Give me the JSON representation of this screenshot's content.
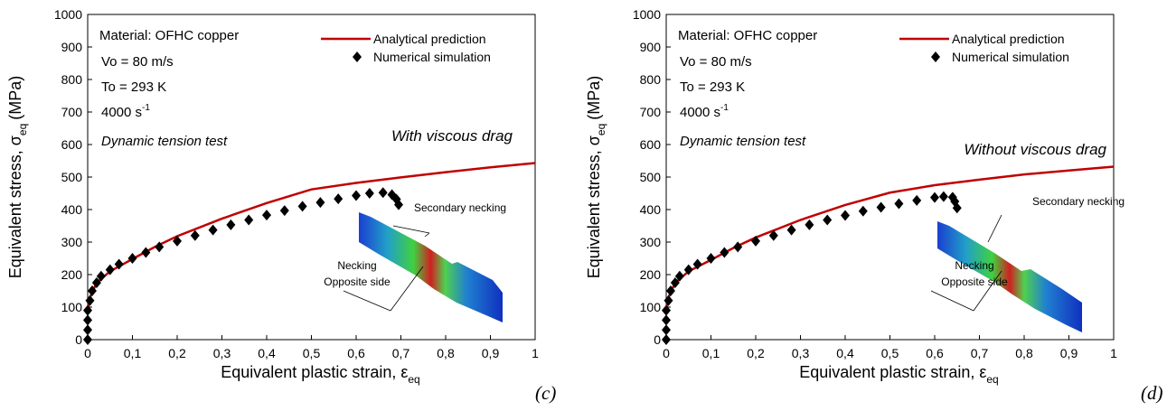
{
  "chart_data": [
    {
      "type": "line",
      "panel_label": "(c)",
      "xlabel": {
        "text": "Equivalent plastic strain, ε",
        "sub": "eq"
      },
      "ylabel": {
        "text": "Equivalent stress, σ",
        "sub": "eq",
        "unit": "(MPa)"
      },
      "xlim": [
        0,
        1
      ],
      "ylim": [
        0,
        1000
      ],
      "xticks": [
        0,
        {
          "value": 0.1,
          "label": "0,1"
        },
        {
          "value": 0.2,
          "label": "0,2"
        },
        {
          "value": 0.3,
          "label": "0,3"
        },
        {
          "value": 0.4,
          "label": "0,4"
        },
        {
          "value": 0.5,
          "label": "0,5"
        },
        {
          "value": 0.6,
          "label": "0,6"
        },
        {
          "value": 0.7,
          "label": "0,7"
        },
        {
          "value": 0.8,
          "label": "0,8"
        },
        {
          "value": 0.9,
          "label": "0,9"
        },
        1
      ],
      "yticks": [
        0,
        100,
        200,
        300,
        400,
        500,
        600,
        700,
        800,
        900,
        1000
      ],
      "annotations": [
        {
          "text": "Material: OFHC copper"
        },
        {
          "text": "Vo = 80 m/s"
        },
        {
          "text": "To = 293 K"
        },
        {
          "text": "4000 s",
          "sup": "-1"
        },
        {
          "text": "Dynamic tension test"
        },
        {
          "text": "With viscous drag"
        },
        {
          "text": "Secondary necking"
        },
        {
          "text": "Necking"
        },
        {
          "text": "Opposite side"
        }
      ],
      "series": [
        {
          "name": "Analytical prediction",
          "color": "#c00000",
          "style": "line",
          "x": [
            0,
            0.005,
            0.02,
            0.05,
            0.1,
            0.15,
            0.2,
            0.3,
            0.4,
            0.5,
            0.6,
            0.7,
            0.8,
            0.9,
            1.0
          ],
          "values": [
            90,
            130,
            175,
            210,
            248,
            285,
            318,
            372,
            420,
            462,
            482,
            499,
            515,
            530,
            543
          ]
        },
        {
          "name": "Numerical simulation",
          "color": "#000000",
          "style": "marker",
          "x": [
            0,
            0,
            0,
            0,
            0.005,
            0.01,
            0.02,
            0.03,
            0.05,
            0.07,
            0.1,
            0.13,
            0.16,
            0.2,
            0.24,
            0.28,
            0.32,
            0.36,
            0.4,
            0.44,
            0.48,
            0.52,
            0.56,
            0.6,
            0.63,
            0.66,
            0.68,
            0.69,
            0.695
          ],
          "values": [
            0,
            30,
            60,
            90,
            120,
            150,
            175,
            195,
            215,
            232,
            250,
            268,
            285,
            303,
            320,
            337,
            353,
            368,
            383,
            397,
            410,
            422,
            433,
            443,
            450,
            452,
            446,
            432,
            415
          ]
        }
      ]
    },
    {
      "type": "line",
      "panel_label": "(d)",
      "xlabel": {
        "text": "Equivalent plastic strain, ε",
        "sub": "eq"
      },
      "ylabel": {
        "text": "Equivalent stress, σ",
        "sub": "eq",
        "unit": "(MPa)"
      },
      "xlim": [
        0,
        1
      ],
      "ylim": [
        0,
        1000
      ],
      "xticks": [
        0,
        {
          "value": 0.1,
          "label": "0,1"
        },
        {
          "value": 0.2,
          "label": "0,2"
        },
        {
          "value": 0.3,
          "label": "0,3"
        },
        {
          "value": 0.4,
          "label": "0,4"
        },
        {
          "value": 0.5,
          "label": "0,5"
        },
        {
          "value": 0.6,
          "label": "0,6"
        },
        {
          "value": 0.7,
          "label": "0,7"
        },
        {
          "value": 0.8,
          "label": "0,8"
        },
        {
          "value": 0.9,
          "label": "0,9"
        },
        1
      ],
      "yticks": [
        0,
        100,
        200,
        300,
        400,
        500,
        600,
        700,
        800,
        900,
        1000
      ],
      "annotations": [
        {
          "text": "Material: OFHC copper"
        },
        {
          "text": "Vo = 80 m/s"
        },
        {
          "text": "To = 293 K"
        },
        {
          "text": "4000 s",
          "sup": "-1"
        },
        {
          "text": "Dynamic tension test"
        },
        {
          "text": "Without viscous drag"
        },
        {
          "text": "Secondary necking"
        },
        {
          "text": "Necking"
        },
        {
          "text": "Opposite side"
        }
      ],
      "series": [
        {
          "name": "Analytical prediction",
          "color": "#c00000",
          "style": "line",
          "x": [
            0,
            0.005,
            0.02,
            0.05,
            0.1,
            0.15,
            0.2,
            0.3,
            0.4,
            0.5,
            0.6,
            0.7,
            0.8,
            0.9,
            1.0
          ],
          "values": [
            90,
            130,
            175,
            210,
            245,
            282,
            314,
            368,
            414,
            452,
            475,
            492,
            508,
            520,
            532
          ]
        },
        {
          "name": "Numerical simulation",
          "color": "#000000",
          "style": "marker",
          "x": [
            0,
            0,
            0,
            0,
            0.005,
            0.01,
            0.02,
            0.03,
            0.05,
            0.07,
            0.1,
            0.13,
            0.16,
            0.2,
            0.24,
            0.28,
            0.32,
            0.36,
            0.4,
            0.44,
            0.48,
            0.52,
            0.56,
            0.6,
            0.62,
            0.64,
            0.645,
            0.65
          ],
          "values": [
            0,
            30,
            60,
            90,
            120,
            150,
            175,
            195,
            215,
            232,
            250,
            268,
            285,
            303,
            320,
            337,
            353,
            368,
            382,
            395,
            407,
            418,
            428,
            437,
            440,
            438,
            425,
            405
          ]
        }
      ]
    }
  ]
}
